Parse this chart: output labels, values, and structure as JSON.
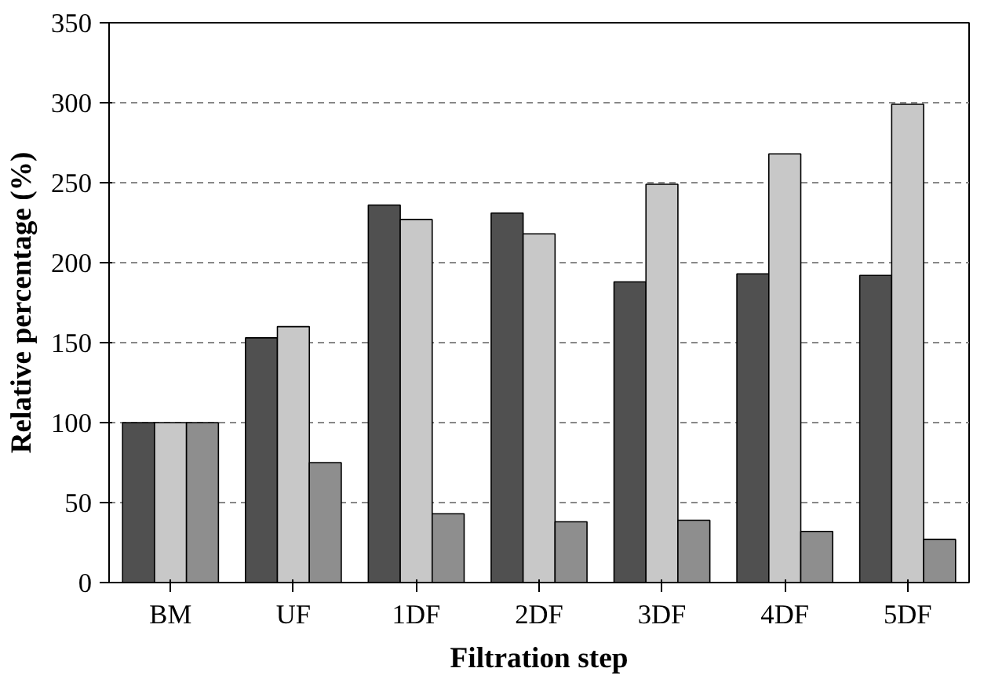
{
  "chart_data": {
    "type": "bar",
    "xlabel": "Filtration step",
    "ylabel": "Relative percentage (%)",
    "categories": [
      "BM",
      "UF",
      "1DF",
      "2DF",
      "3DF",
      "4DF",
      "5DF"
    ],
    "series": [
      {
        "color": "#505050",
        "values": [
          100,
          153,
          236,
          231,
          188,
          193,
          192
        ]
      },
      {
        "color": "#c8c8c8",
        "values": [
          100,
          160,
          227,
          218,
          249,
          268,
          299
        ]
      },
      {
        "color": "#8e8e8e",
        "values": [
          100,
          75,
          43,
          38,
          39,
          32,
          27
        ]
      }
    ],
    "ylim": [
      0,
      350
    ],
    "yticks": [
      0,
      50,
      100,
      150,
      200,
      250,
      300,
      350
    ],
    "grid": "y",
    "line_style": "dashed"
  }
}
